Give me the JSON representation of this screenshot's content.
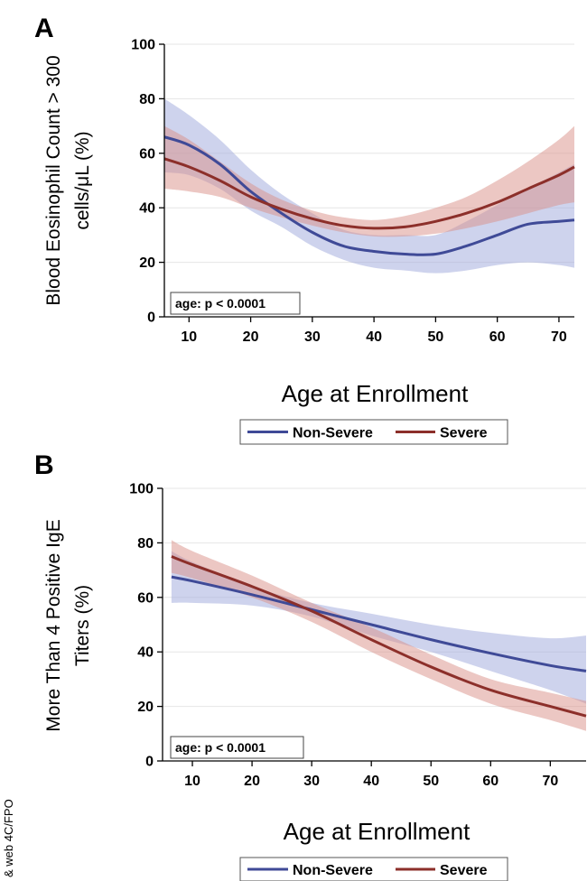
{
  "side_note": "& web 4C/FPO",
  "colors": {
    "non_severe": "#3f4a97",
    "severe": "#8c2f2a",
    "non_severe_band": "#9ea7dc",
    "severe_band": "#d98f88",
    "gridline": "#e6e6e6"
  },
  "chart_data": [
    {
      "type": "line",
      "panel_label": "A",
      "ylabel": [
        "Blood Eosinophil Count > 300",
        "cells/μL (%)"
      ],
      "xlabel": "Age at Enrollment",
      "xlim": [
        6,
        72.5
      ],
      "ylim": [
        0,
        100
      ],
      "xticks": [
        10,
        20,
        30,
        40,
        50,
        60,
        70
      ],
      "yticks": [
        0,
        20,
        40,
        60,
        80,
        100
      ],
      "grid": "horizontal",
      "annotation": "age: p < 0.0001",
      "legend_position": "bottom-center",
      "series": [
        {
          "name": "Non-Severe",
          "color_key": "non_severe",
          "x": [
            6,
            10,
            15,
            20,
            25,
            30,
            35,
            40,
            45,
            50,
            55,
            60,
            65,
            70,
            72.5
          ],
          "y": [
            66,
            63,
            56,
            46,
            38,
            31,
            26,
            24,
            23,
            23,
            26,
            30,
            34,
            35,
            35.5
          ],
          "lower": [
            53,
            52,
            47,
            39,
            33,
            26,
            21,
            18,
            17,
            16,
            17,
            19,
            20,
            19,
            18
          ],
          "upper": [
            80,
            74,
            65,
            54,
            45,
            38,
            32,
            30,
            30,
            30,
            35,
            41,
            47,
            53,
            56
          ]
        },
        {
          "name": "Severe",
          "color_key": "severe",
          "x": [
            6,
            10,
            15,
            20,
            25,
            30,
            35,
            40,
            45,
            50,
            55,
            60,
            65,
            70,
            72.5
          ],
          "y": [
            58,
            55,
            50,
            44,
            39.5,
            36,
            33.5,
            32.5,
            33,
            35,
            38,
            42,
            47,
            52,
            55
          ],
          "lower": [
            47,
            46,
            44,
            40,
            36.5,
            33.5,
            31,
            29.5,
            29.5,
            30.5,
            32.5,
            35,
            38,
            41,
            42
          ],
          "upper": [
            70,
            65,
            57,
            49,
            43,
            39,
            36.5,
            35.5,
            37,
            40,
            44,
            50,
            57,
            65,
            70
          ]
        }
      ]
    },
    {
      "type": "line",
      "panel_label": "B",
      "ylabel": [
        "More Than 4 Positive IgE",
        "Titers (%)"
      ],
      "xlabel": "Age at Enrollment",
      "xlim": [
        5,
        76
      ],
      "ylim": [
        0,
        100
      ],
      "xticks": [
        10,
        20,
        30,
        40,
        50,
        60,
        70
      ],
      "yticks": [
        0,
        20,
        40,
        60,
        80,
        100
      ],
      "grid": "horizontal",
      "annotation": "age: p < 0.0001",
      "legend_position": "bottom-center",
      "series": [
        {
          "name": "Non-Severe",
          "color_key": "non_severe",
          "x": [
            6.5,
            10,
            20,
            30,
            40,
            50,
            60,
            70,
            76
          ],
          "y": [
            67.5,
            66,
            61,
            55.5,
            50,
            44.5,
            39.5,
            35,
            33
          ],
          "lower": [
            58,
            58,
            57,
            53,
            46,
            40,
            33,
            26,
            21
          ],
          "upper": [
            77,
            73,
            64,
            58,
            54,
            50,
            47,
            45,
            46
          ]
        },
        {
          "name": "Severe",
          "color_key": "severe",
          "x": [
            6.5,
            10,
            20,
            30,
            40,
            50,
            60,
            70,
            76
          ],
          "y": [
            75,
            72,
            64,
            55,
            44.5,
            34.5,
            26,
            20,
            16.5
          ],
          "lower": [
            69,
            67,
            60,
            51,
            40,
            30,
            21,
            15,
            11
          ],
          "upper": [
            81,
            77,
            68,
            58,
            49,
            39,
            30,
            25,
            22
          ]
        }
      ]
    }
  ]
}
